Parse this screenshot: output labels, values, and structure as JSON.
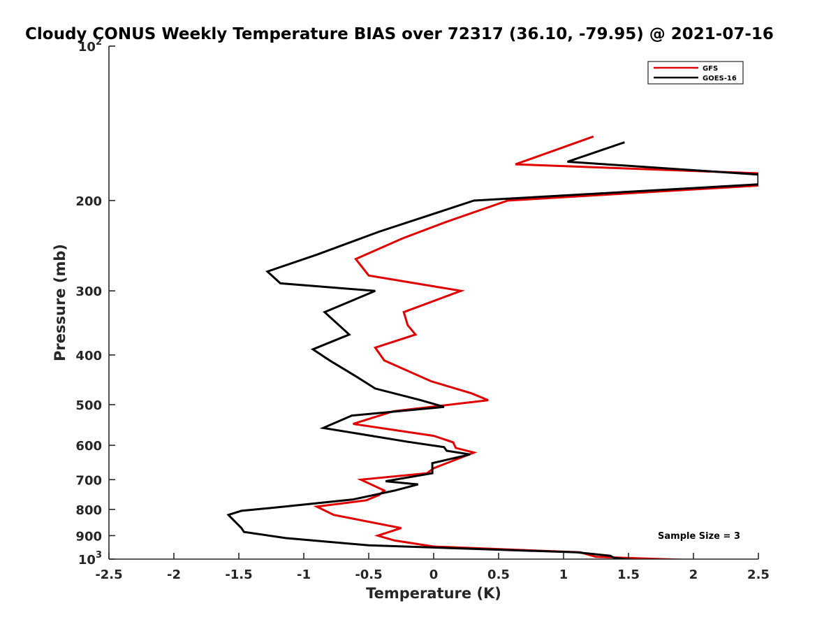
{
  "chart_data": {
    "type": "line",
    "title": "Cloudy CONUS Weekly Temperature BIAS over 72317 (36.10, -79.95) @ 2021-07-16",
    "xlabel": "Temperature (K)",
    "ylabel": "Pressure (mb)",
    "xlim": [
      -2.5,
      2.5
    ],
    "ylim": [
      100,
      1000
    ],
    "y_scale": "log",
    "y_direction": "reversed",
    "x_ticks": [
      "-2.5",
      "-2",
      "-1.5",
      "-1",
      "-0.5",
      "0",
      "0.5",
      "1",
      "1.5",
      "2",
      "2.5"
    ],
    "y_ticks": [
      {
        "value": 100,
        "base": "10",
        "exp": "2"
      },
      {
        "value": 200,
        "label": "200"
      },
      {
        "value": 300,
        "label": "300"
      },
      {
        "value": 400,
        "label": "400"
      },
      {
        "value": 500,
        "label": "500"
      },
      {
        "value": 600,
        "label": "600"
      },
      {
        "value": 700,
        "label": "700"
      },
      {
        "value": 800,
        "label": "800"
      },
      {
        "value": 900,
        "label": "900"
      },
      {
        "value": 1000,
        "base": "10",
        "exp": "3"
      }
    ],
    "grid": false,
    "legend_position": "top-right",
    "annotation": "Sample Size = 3",
    "series": [
      {
        "name": "GFS",
        "color": "#e00000",
        "points": [
          [
            1.23,
            150
          ],
          [
            0.63,
            170
          ],
          [
            2.5,
            177
          ],
          [
            2.5,
            187
          ],
          [
            0.57,
            200
          ],
          [
            0.1,
            220
          ],
          [
            -0.24,
            237
          ],
          [
            -0.6,
            260
          ],
          [
            -0.5,
            280
          ],
          [
            0.21,
            300
          ],
          [
            -0.23,
            330
          ],
          [
            -0.2,
            350
          ],
          [
            -0.14,
            365
          ],
          [
            -0.45,
            387
          ],
          [
            -0.38,
            410
          ],
          [
            -0.02,
            450
          ],
          [
            0.29,
            475
          ],
          [
            0.42,
            490
          ],
          [
            -0.31,
            515
          ],
          [
            -0.62,
            545
          ],
          [
            0.0,
            575
          ],
          [
            0.15,
            592
          ],
          [
            0.17,
            607
          ],
          [
            0.31,
            620
          ],
          [
            0.0,
            665
          ],
          [
            -0.05,
            680
          ],
          [
            -0.56,
            700
          ],
          [
            -0.38,
            735
          ],
          [
            -0.42,
            750
          ],
          [
            -0.52,
            768
          ],
          [
            -0.9,
            790
          ],
          [
            -0.77,
            820
          ],
          [
            -0.25,
            870
          ],
          [
            -0.43,
            900
          ],
          [
            -0.3,
            920
          ],
          [
            0.0,
            945
          ],
          [
            1.13,
            970
          ],
          [
            1.25,
            990
          ],
          [
            2.28,
            1010
          ]
        ]
      },
      {
        "name": "GOES-16",
        "color": "#000000",
        "points": [
          [
            1.47,
            154
          ],
          [
            1.03,
            168
          ],
          [
            2.5,
            178
          ],
          [
            2.5,
            186
          ],
          [
            0.31,
            200
          ],
          [
            -0.42,
            230
          ],
          [
            -0.9,
            255
          ],
          [
            -1.28,
            275
          ],
          [
            -1.18,
            290
          ],
          [
            -0.45,
            300
          ],
          [
            -0.84,
            330
          ],
          [
            -0.65,
            365
          ],
          [
            -0.93,
            390
          ],
          [
            -0.8,
            410
          ],
          [
            -0.6,
            440
          ],
          [
            -0.45,
            465
          ],
          [
            -0.1,
            490
          ],
          [
            0.08,
            505
          ],
          [
            -0.63,
            525
          ],
          [
            -0.85,
            555
          ],
          [
            -0.21,
            590
          ],
          [
            0.08,
            605
          ],
          [
            0.1,
            615
          ],
          [
            0.28,
            625
          ],
          [
            -0.01,
            650
          ],
          [
            -0.01,
            680
          ],
          [
            -0.37,
            705
          ],
          [
            -0.12,
            715
          ],
          [
            -0.3,
            735
          ],
          [
            -0.62,
            765
          ],
          [
            -1.15,
            790
          ],
          [
            -1.48,
            805
          ],
          [
            -1.58,
            820
          ],
          [
            -1.56,
            830
          ],
          [
            -1.48,
            870
          ],
          [
            -1.46,
            885
          ],
          [
            -1.14,
            910
          ],
          [
            -0.5,
            940
          ],
          [
            1.1,
            970
          ],
          [
            1.36,
            985
          ],
          [
            1.39,
            995
          ],
          [
            1.74,
            1015
          ]
        ]
      }
    ]
  }
}
